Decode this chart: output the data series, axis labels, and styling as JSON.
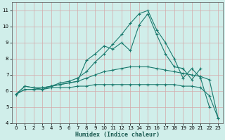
{
  "xlabel": "Humidex (Indice chaleur)",
  "background_color": "#d0eeea",
  "grid_color": "#d4a8a8",
  "line_color": "#1a7a6e",
  "x_values": [
    0,
    1,
    2,
    3,
    4,
    5,
    6,
    7,
    8,
    9,
    10,
    11,
    12,
    13,
    14,
    15,
    16,
    17,
    18,
    19,
    20,
    21,
    22,
    23
  ],
  "series": [
    [
      5.8,
      6.3,
      6.2,
      6.1,
      6.3,
      6.4,
      6.5,
      6.6,
      7.9,
      8.3,
      8.8,
      8.6,
      9.0,
      8.5,
      10.1,
      10.8,
      9.5,
      8.3,
      7.5,
      7.4,
      6.7,
      7.4,
      null,
      null
    ],
    [
      5.8,
      6.3,
      6.2,
      6.2,
      6.3,
      6.5,
      6.6,
      6.8,
      7.2,
      7.8,
      8.3,
      8.9,
      9.5,
      10.2,
      10.8,
      11.0,
      9.8,
      9.0,
      8.0,
      6.8,
      7.4,
      6.8,
      5.0,
      null
    ],
    [
      5.8,
      6.1,
      6.1,
      6.2,
      6.3,
      6.4,
      6.5,
      6.6,
      6.8,
      7.0,
      7.2,
      7.3,
      7.4,
      7.5,
      7.5,
      7.5,
      7.4,
      7.3,
      7.2,
      7.1,
      7.0,
      6.9,
      6.7,
      4.3
    ],
    [
      5.8,
      6.1,
      6.1,
      6.1,
      6.2,
      6.2,
      6.2,
      6.3,
      6.3,
      6.4,
      6.4,
      6.4,
      6.4,
      6.4,
      6.4,
      6.4,
      6.4,
      6.4,
      6.4,
      6.3,
      6.3,
      6.2,
      5.7,
      4.3
    ]
  ],
  "xlim": [
    -0.5,
    23.5
  ],
  "ylim": [
    4,
    11.5
  ],
  "yticks": [
    4,
    5,
    6,
    7,
    8,
    9,
    10,
    11
  ],
  "xticks": [
    0,
    1,
    2,
    3,
    4,
    5,
    6,
    7,
    8,
    9,
    10,
    11,
    12,
    13,
    14,
    15,
    16,
    17,
    18,
    19,
    20,
    21,
    22,
    23
  ],
  "xlabel_fontsize": 6.0,
  "tick_fontsize": 5.0
}
